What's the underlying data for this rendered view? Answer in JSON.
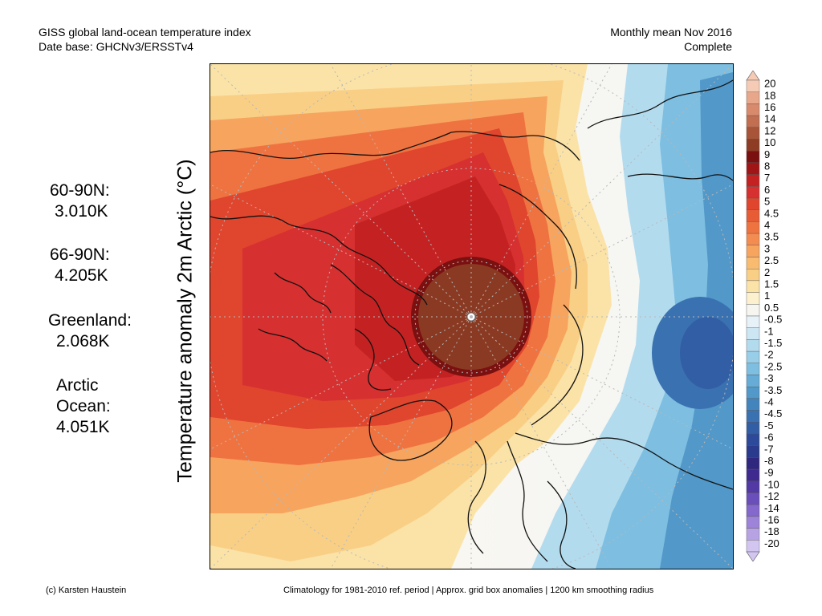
{
  "header": {
    "title_line1": "GISS global land-ocean temperature index",
    "title_line2": "Date base: GHCNv3/ERSSTv4",
    "period_line1": "Monthly mean Nov 2016",
    "period_line2": "Complete"
  },
  "axis_label": "Temperature anomaly 2m Arctic (°C)",
  "stats": [
    {
      "region": "60-90N:",
      "value": "3.010K"
    },
    {
      "region": "66-90N:",
      "value": "4.205K"
    },
    {
      "region": "Greenland:",
      "value": "2.068K"
    },
    {
      "region": "Arctic",
      "region_line2": "Ocean:",
      "value": "4.051K"
    }
  ],
  "colorbar": {
    "labels": [
      "20",
      "18",
      "16",
      "14",
      "12",
      "10",
      "9",
      "8",
      "7",
      "6",
      "5",
      "4.5",
      "4",
      "3.5",
      "3",
      "2.5",
      "2",
      "1.5",
      "1",
      "0.5",
      "-0.5",
      "-1",
      "-1.5",
      "-2",
      "-2.5",
      "-3",
      "-3.5",
      "-4",
      "-4.5",
      "-5",
      "-6",
      "-7",
      "-8",
      "-9",
      "-10",
      "-12",
      "-14",
      "-16",
      "-18",
      "-20"
    ],
    "colors": [
      "#f6cbb6",
      "#e8a78a",
      "#d98a6c",
      "#c16e51",
      "#a85438",
      "#8e3c24",
      "#7a1010",
      "#a01616",
      "#c42222",
      "#d63030",
      "#e0452e",
      "#e85c35",
      "#ef7340",
      "#f38c50",
      "#f7a45f",
      "#f8bb70",
      "#f9cf86",
      "#fbe3a8",
      "#fcf1cf",
      "#f7f5ef",
      "#e6f1f8",
      "#cde6f3",
      "#b3dbee",
      "#98cee8",
      "#7dbee1",
      "#66acd6",
      "#5298c9",
      "#4484bd",
      "#3a71b1",
      "#325ea5",
      "#2c4a99",
      "#2a3a8c",
      "#30287f",
      "#3f2b8f",
      "#5239a4",
      "#6a4fbb",
      "#8468cc",
      "#9d84d8",
      "#b7a3e4",
      "#d2c6f0"
    ]
  },
  "footer": {
    "credit": "(c) Karsten Haustein",
    "note": "Climatology for 1981-2010 ref. period | Approx. grid box anomalies | 1200 km smoothing radius"
  }
}
